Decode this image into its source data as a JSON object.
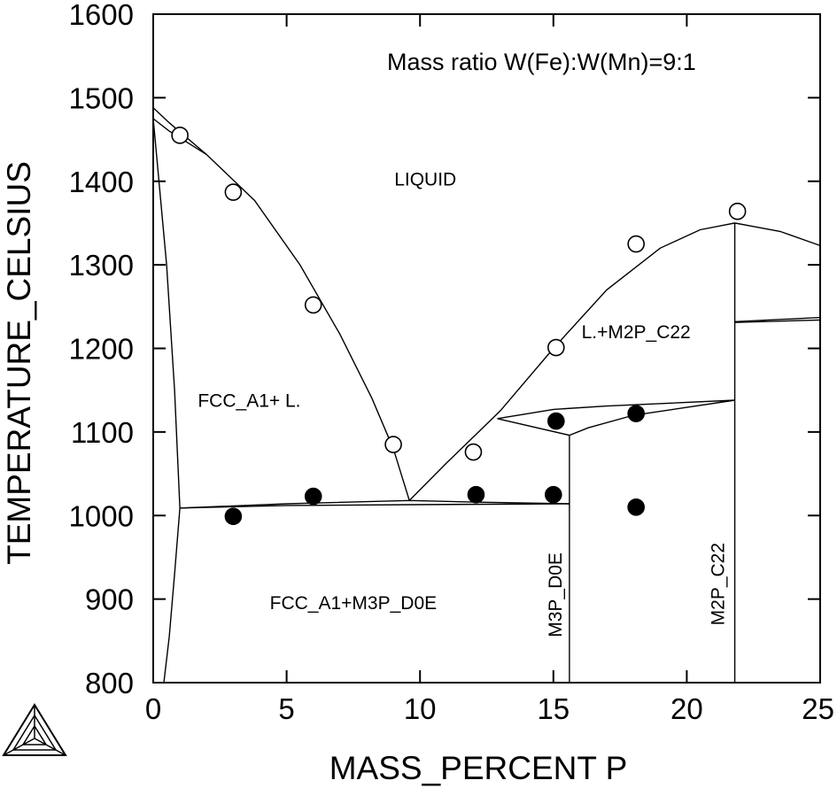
{
  "chart_data": {
    "type": "scatter",
    "title": "",
    "xlabel": "MASS_PERCENT P",
    "ylabel": "TEMPERATURE_CELSIUS",
    "xlim": [
      0,
      25
    ],
    "ylim": [
      800,
      1600
    ],
    "x_ticks": [
      "0",
      "5",
      "10",
      "15",
      "20",
      "25"
    ],
    "y_ticks": [
      "800",
      "900",
      "1000",
      "1100",
      "1200",
      "1300",
      "1400",
      "1500",
      "1600"
    ],
    "annotation": "Mass ratio W(Fe):W(Mn)=9:1",
    "region_labels": [
      {
        "text": "LIQUID",
        "x": 10.2,
        "y": 1395,
        "rotate": false
      },
      {
        "text": "FCC_A1+ L.",
        "x": 3.6,
        "y": 1130,
        "rotate": false
      },
      {
        "text": "L.+M2P_C22",
        "x": 18.1,
        "y": 1212,
        "rotate": false
      },
      {
        "text": "FCC_A1+M3P_D0E",
        "x": 7.5,
        "y": 888,
        "rotate": false
      },
      {
        "text": "M3P_D0E",
        "x": 15.3,
        "y": 905,
        "rotate": true
      },
      {
        "text": "M2P_C22",
        "x": 21.4,
        "y": 918,
        "rotate": true
      }
    ],
    "series": [
      {
        "marker": "open-circle",
        "points": [
          [
            1.0,
            1455
          ],
          [
            3.0,
            1387
          ],
          [
            6.0,
            1252
          ],
          [
            9.0,
            1085
          ],
          [
            12.0,
            1076
          ],
          [
            15.1,
            1201
          ],
          [
            18.1,
            1325
          ],
          [
            21.9,
            1364
          ]
        ]
      },
      {
        "marker": "filled-circle",
        "points": [
          [
            3.0,
            999
          ],
          [
            6.0,
            1023
          ],
          [
            12.1,
            1025
          ],
          [
            15.0,
            1025
          ],
          [
            15.1,
            1113
          ],
          [
            18.1,
            1122
          ],
          [
            18.1,
            1010
          ]
        ]
      }
    ],
    "phase_boundaries": [
      [
        [
          0.0,
          1488
        ],
        [
          0.6,
          1470
        ],
        [
          2.0,
          1432
        ]
      ],
      [
        [
          0.0,
          1475
        ],
        [
          0.6,
          1460
        ],
        [
          2.0,
          1432
        ],
        [
          3.8,
          1377
        ],
        [
          5.5,
          1300
        ],
        [
          7.0,
          1217
        ],
        [
          8.2,
          1140
        ],
        [
          9.0,
          1080
        ],
        [
          9.6,
          1018
        ]
      ],
      [
        [
          9.6,
          1018
        ],
        [
          11.0,
          1063
        ],
        [
          13.0,
          1125
        ],
        [
          15.0,
          1200
        ],
        [
          17.0,
          1270
        ],
        [
          19.0,
          1320
        ],
        [
          20.5,
          1342
        ],
        [
          21.8,
          1350
        ],
        [
          23.5,
          1340
        ],
        [
          25.0,
          1323
        ]
      ],
      [
        [
          0.0,
          1475
        ],
        [
          0.5,
          1300
        ],
        [
          0.8,
          1150
        ],
        [
          1.0,
          1009
        ]
      ],
      [
        [
          1.0,
          1009
        ],
        [
          0.8,
          930
        ],
        [
          0.6,
          855
        ],
        [
          0.4,
          800
        ]
      ],
      [
        [
          1.0,
          1009
        ],
        [
          5.0,
          1014
        ],
        [
          9.6,
          1018
        ],
        [
          12.0,
          1016
        ],
        [
          15.6,
          1014
        ]
      ],
      [
        [
          1.0,
          1009
        ],
        [
          5.0,
          1012
        ],
        [
          9.6,
          1013
        ],
        [
          15.6,
          1014
        ]
      ],
      [
        [
          12.9,
          1116
        ],
        [
          15.6,
          1096
        ],
        [
          16.3,
          1105
        ],
        [
          18.0,
          1120
        ],
        [
          21.8,
          1138
        ]
      ],
      [
        [
          12.9,
          1116
        ],
        [
          15.0,
          1127
        ],
        [
          17.0,
          1131
        ],
        [
          21.8,
          1138
        ]
      ],
      [
        [
          15.6,
          1096
        ],
        [
          15.6,
          800
        ]
      ],
      [
        [
          21.8,
          1350
        ],
        [
          21.8,
          800
        ]
      ],
      [
        [
          21.8,
          1232
        ],
        [
          25.0,
          1237
        ]
      ],
      [
        [
          21.8,
          1231
        ],
        [
          25.0,
          1234
        ]
      ]
    ]
  }
}
